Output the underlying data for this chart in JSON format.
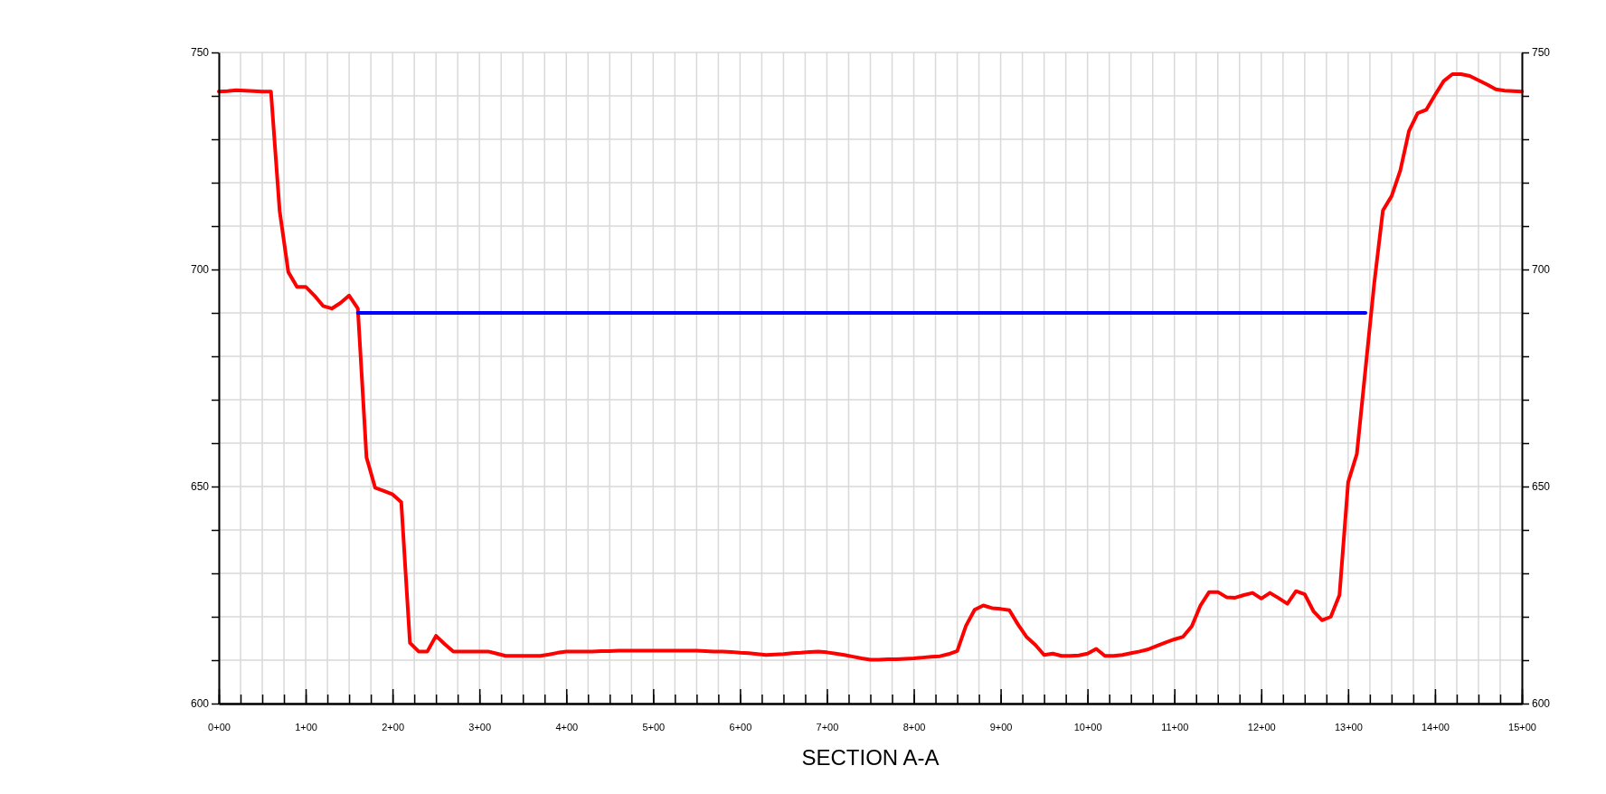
{
  "chart_data": {
    "type": "line",
    "title": "SECTION A-A",
    "categories": [
      "0+00",
      null,
      null,
      null,
      null,
      null,
      null,
      null,
      null,
      null,
      "1+00",
      null,
      null,
      null,
      null,
      null,
      null,
      null,
      null,
      null,
      "2+00",
      null,
      null,
      null,
      null,
      null,
      null,
      null,
      null,
      null,
      "3+00",
      null,
      null,
      null,
      null,
      null,
      null,
      null,
      null,
      null,
      "4+00",
      null,
      null,
      null,
      null,
      null,
      null,
      null,
      null,
      null,
      "5+00",
      null,
      null,
      null,
      null,
      null,
      null,
      null,
      null,
      null,
      "6+00",
      null,
      null,
      null,
      null,
      null,
      null,
      null,
      null,
      null,
      "7+00",
      null,
      null,
      null,
      null,
      null,
      null,
      null,
      null,
      null,
      "8+00",
      null,
      null,
      null,
      null,
      null,
      null,
      null,
      null,
      null,
      "9+00",
      null,
      null,
      null,
      null,
      null,
      null,
      null,
      null,
      null,
      "10+00",
      null,
      null,
      null,
      null,
      null,
      null,
      null,
      null,
      null,
      "11+00",
      null,
      null,
      null,
      null,
      null,
      null,
      null,
      null,
      null,
      "12+00",
      null,
      null,
      null,
      null,
      null,
      null,
      null,
      null,
      null,
      "13+00",
      null,
      null,
      null,
      null,
      null,
      null,
      null,
      null,
      null,
      "14+00",
      null,
      null,
      null,
      null,
      null,
      null,
      null,
      null,
      null,
      "15+00"
    ],
    "ylim": [
      600,
      750
    ],
    "yticks": [
      600,
      {
        "value": 610,
        "label": null
      },
      {
        "value": 620,
        "label": null
      },
      {
        "value": 630,
        "label": null
      },
      {
        "value": 640,
        "label": null
      },
      650,
      {
        "value": 660,
        "label": null
      },
      {
        "value": 670,
        "label": null
      },
      {
        "value": 680,
        "label": null
      },
      {
        "value": 690,
        "label": null
      },
      700,
      {
        "value": 710,
        "label": null
      },
      {
        "value": 720,
        "label": null
      },
      {
        "value": 730,
        "label": null
      },
      {
        "value": 740,
        "label": null
      },
      750
    ],
    "y2lim": [
      600,
      750
    ],
    "y2ticks": [
      600,
      {
        "value": 610,
        "label": null
      },
      {
        "value": 620,
        "label": null
      },
      {
        "value": 630,
        "label": null
      },
      {
        "value": 640,
        "label": null
      },
      650,
      {
        "value": 660,
        "label": null
      },
      {
        "value": 670,
        "label": null
      },
      {
        "value": 680,
        "label": null
      },
      {
        "value": 690,
        "label": null
      },
      700,
      {
        "value": 710,
        "label": null
      },
      {
        "value": 720,
        "label": null
      },
      {
        "value": 730,
        "label": null
      },
      {
        "value": 740,
        "label": null
      },
      750
    ],
    "grid": true,
    "series": [
      {
        "color": "#ff0000",
        "values": [
          741,
          741.1,
          741.3,
          741.2,
          741.1,
          741,
          741,
          713.5,
          699.4,
          696,
          696,
          694,
          691.6,
          691,
          692.3,
          694,
          691,
          656.7,
          649.7,
          649,
          648.2,
          646.4,
          614,
          612,
          612,
          615.6,
          613.7,
          612,
          612,
          612,
          612,
          612,
          611.5,
          611,
          611,
          611,
          611,
          611,
          611.3,
          611.7,
          612,
          612,
          612,
          612,
          612.1,
          612.1,
          612.2,
          612.2,
          612.2,
          612.2,
          612.2,
          612.2,
          612.2,
          612.2,
          612.2,
          612.2,
          612.1,
          612,
          612,
          611.9,
          611.7,
          611.6,
          611.4,
          611.2,
          611.3,
          611.4,
          611.6,
          611.7,
          611.9,
          612,
          611.8,
          611.5,
          611.2,
          610.8,
          610.4,
          610.1,
          610.1,
          610.2,
          610.2,
          610.3,
          610.4,
          610.6,
          610.8,
          610.9,
          611.4,
          612.1,
          617.9,
          621.6,
          622.6,
          622,
          621.8,
          621.5,
          618.2,
          615.3,
          613.5,
          611.2,
          611.5,
          611,
          611,
          611.1,
          611.5,
          612.6,
          611,
          611,
          611.2,
          611.6,
          612,
          612.5,
          613.3,
          614.1,
          614.8,
          615.4,
          617.8,
          622.6,
          625.7,
          625.7,
          624.5,
          624.4,
          625,
          625.5,
          624.2,
          625.5,
          624.3,
          623,
          625.9,
          625.2,
          621.3,
          619.2,
          620,
          625,
          651,
          657.5,
          677.2,
          696.8,
          713.6,
          716.9,
          722.8,
          731.9,
          736,
          736.8,
          740.2,
          743.4,
          745,
          745,
          744.6,
          743.6,
          742.6,
          741.5,
          741.2,
          741.1,
          741
        ]
      },
      {
        "color": "#0000ff",
        "values": [
          null,
          null,
          null,
          null,
          null,
          null,
          null,
          null,
          null,
          null,
          null,
          null,
          null,
          null,
          null,
          null,
          690,
          690,
          690,
          690,
          690,
          690,
          690,
          690,
          690,
          690,
          690,
          690,
          690,
          690,
          690,
          690,
          690,
          690,
          690,
          690,
          690,
          690,
          690,
          690,
          690,
          690,
          690,
          690,
          690,
          690,
          690,
          690,
          690,
          690,
          690,
          690,
          690,
          690,
          690,
          690,
          690,
          690,
          690,
          690,
          690,
          690,
          690,
          690,
          690,
          690,
          690,
          690,
          690,
          690,
          690,
          690,
          690,
          690,
          690,
          690,
          690,
          690,
          690,
          690,
          690,
          690,
          690,
          690,
          690,
          690,
          690,
          690,
          690,
          690,
          690,
          690,
          690,
          690,
          690,
          690,
          690,
          690,
          690,
          690,
          690,
          690,
          690,
          690,
          690,
          690,
          690,
          690,
          690,
          690,
          690,
          690,
          690,
          690,
          690,
          690,
          690,
          690,
          690,
          690,
          690,
          690,
          690,
          690,
          690,
          690,
          690,
          690,
          690,
          690,
          690,
          690,
          690,
          null,
          null,
          null,
          null,
          null,
          null,
          null,
          null,
          null,
          null,
          null,
          null,
          null,
          null,
          null,
          null,
          null,
          null
        ]
      }
    ]
  }
}
